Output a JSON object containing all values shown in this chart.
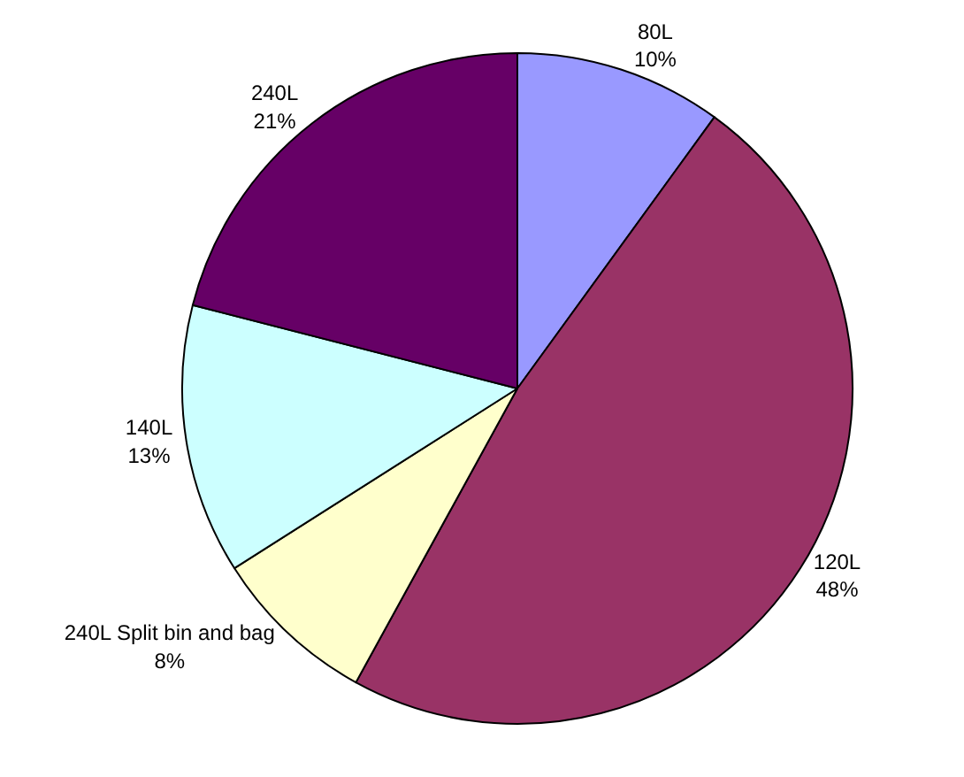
{
  "chart_data": {
    "type": "pie",
    "categories": [
      "80L",
      "120L",
      "240L Split bin and bag",
      "140L",
      "240L"
    ],
    "values": [
      10,
      48,
      8,
      13,
      21
    ],
    "value_labels": [
      "10%",
      "48%",
      "8%",
      "13%",
      "21%"
    ],
    "colors": [
      "#9999ff",
      "#993366",
      "#ffffcc",
      "#ccffff",
      "#660066"
    ],
    "legend": false
  }
}
